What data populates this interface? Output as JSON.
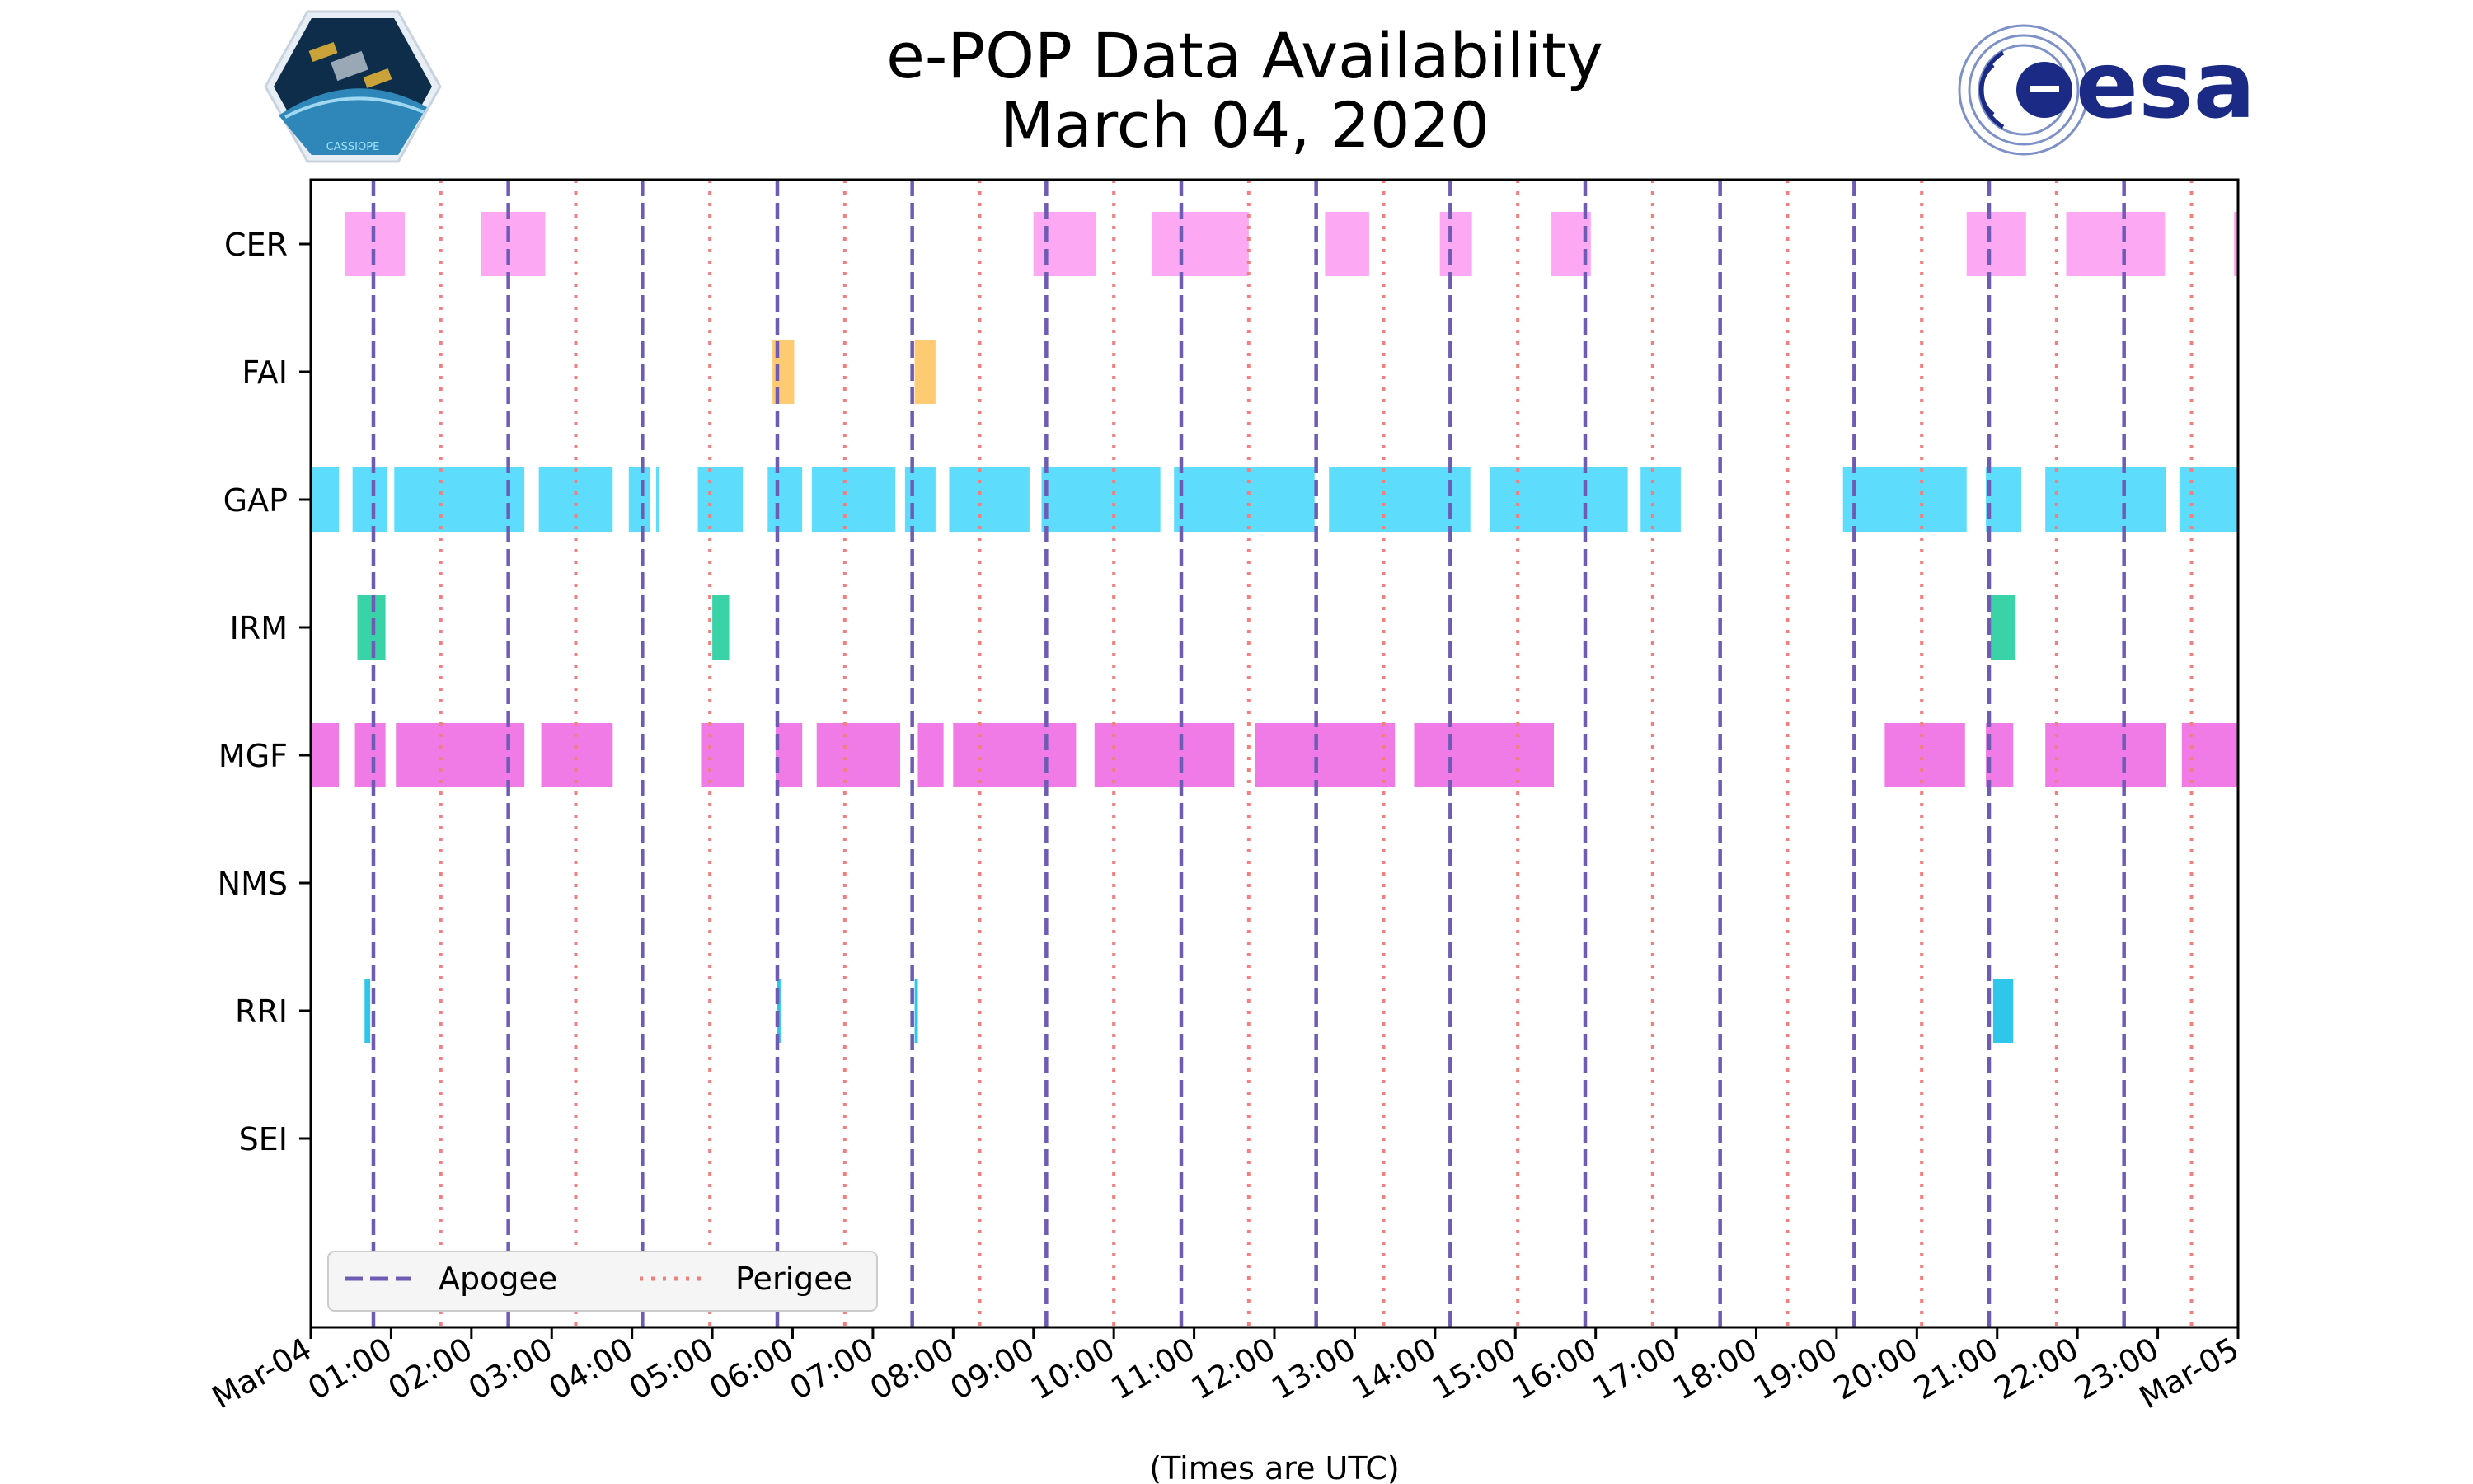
{
  "header": {
    "title_line1": "e-POP Data Availability",
    "title_line2": "March 04, 2020",
    "left_logo_text": "CASSIOPE",
    "right_logo_text": "esa"
  },
  "colors": {
    "apogee": "#6e5bb3",
    "perigee": "#f08080",
    "CER": "#fda8f2",
    "FAI": "#fecb73",
    "GAP": "#5ddcfb",
    "IRM": "#3ad3a8",
    "MGF": "#f07ae6",
    "RRI": "#2ec7ea"
  },
  "chart_data": {
    "type": "timeline",
    "title": "e-POP Data Availability March 04, 2020",
    "xlabel": "(Times are UTC)",
    "ylabel": "",
    "xlim_hours": [
      0,
      24
    ],
    "x_tick_hours": [
      0,
      1,
      2,
      3,
      4,
      5,
      6,
      7,
      8,
      9,
      10,
      11,
      12,
      13,
      14,
      15,
      16,
      17,
      18,
      19,
      20,
      21,
      22,
      23,
      24
    ],
    "x_tick_labels": [
      "Mar-04",
      "01:00",
      "02:00",
      "03:00",
      "04:00",
      "05:00",
      "06:00",
      "07:00",
      "08:00",
      "09:00",
      "10:00",
      "11:00",
      "12:00",
      "13:00",
      "14:00",
      "15:00",
      "16:00",
      "17:00",
      "18:00",
      "19:00",
      "20:00",
      "21:00",
      "22:00",
      "23:00",
      "Mar-05"
    ],
    "instruments": [
      "CER",
      "FAI",
      "GAP",
      "IRM",
      "MGF",
      "NMS",
      "RRI",
      "SEI"
    ],
    "legend": {
      "location": "lower-left",
      "entries": [
        "Apogee",
        "Perigee"
      ]
    },
    "apogee_hours": [
      0.78,
      2.46,
      4.13,
      5.81,
      7.49,
      9.16,
      10.84,
      12.52,
      14.19,
      15.87,
      17.55,
      19.22,
      20.9,
      22.58
    ],
    "perigee_hours": [
      1.62,
      3.3,
      4.97,
      6.65,
      8.33,
      10.0,
      11.68,
      13.36,
      15.03,
      16.71,
      18.39,
      20.06,
      21.74,
      23.42
    ],
    "series": [
      {
        "name": "CER",
        "intervals": [
          [
            0.42,
            1.17
          ],
          [
            2.12,
            2.92
          ],
          [
            9.0,
            9.78
          ],
          [
            10.48,
            11.68
          ],
          [
            12.63,
            13.18
          ],
          [
            14.06,
            14.46
          ],
          [
            15.45,
            15.94
          ],
          [
            20.62,
            21.36
          ],
          [
            21.86,
            23.09
          ],
          [
            23.95,
            24.0
          ]
        ]
      },
      {
        "name": "FAI",
        "intervals": [
          [
            5.75,
            6.02
          ],
          [
            7.52,
            7.78
          ]
        ]
      },
      {
        "name": "GAP",
        "intervals": [
          [
            0.0,
            0.35
          ],
          [
            0.52,
            0.95
          ],
          [
            1.04,
            2.66
          ],
          [
            2.84,
            3.76
          ],
          [
            3.96,
            4.23
          ],
          [
            4.3,
            4.34
          ],
          [
            4.82,
            5.38
          ],
          [
            5.69,
            6.12
          ],
          [
            6.24,
            7.28
          ],
          [
            7.4,
            7.78
          ],
          [
            7.95,
            8.95
          ],
          [
            9.1,
            10.58
          ],
          [
            10.75,
            12.5
          ],
          [
            12.68,
            14.44
          ],
          [
            14.68,
            16.4
          ],
          [
            16.56,
            17.06
          ],
          [
            19.08,
            20.62
          ],
          [
            20.86,
            21.3
          ],
          [
            21.6,
            23.1
          ],
          [
            23.27,
            24.0
          ]
        ]
      },
      {
        "name": "IRM",
        "intervals": [
          [
            0.58,
            0.93
          ],
          [
            5.0,
            5.21
          ],
          [
            20.92,
            21.23
          ]
        ]
      },
      {
        "name": "MGF",
        "intervals": [
          [
            0.0,
            0.35
          ],
          [
            0.55,
            0.93
          ],
          [
            1.06,
            2.66
          ],
          [
            2.87,
            3.76
          ],
          [
            4.86,
            5.39
          ],
          [
            5.79,
            6.12
          ],
          [
            6.3,
            7.34
          ],
          [
            7.56,
            7.88
          ],
          [
            8.0,
            9.53
          ],
          [
            9.76,
            11.5
          ],
          [
            11.76,
            13.5
          ],
          [
            13.74,
            15.48
          ],
          [
            19.6,
            20.6
          ],
          [
            20.86,
            21.2
          ],
          [
            21.6,
            23.1
          ],
          [
            23.3,
            24.0
          ]
        ]
      },
      {
        "name": "NMS",
        "intervals": []
      },
      {
        "name": "RRI",
        "intervals": [
          [
            0.67,
            0.74
          ],
          [
            5.81,
            5.85
          ],
          [
            7.52,
            7.56
          ],
          [
            20.95,
            21.2
          ]
        ]
      },
      {
        "name": "SEI",
        "intervals": []
      }
    ]
  }
}
